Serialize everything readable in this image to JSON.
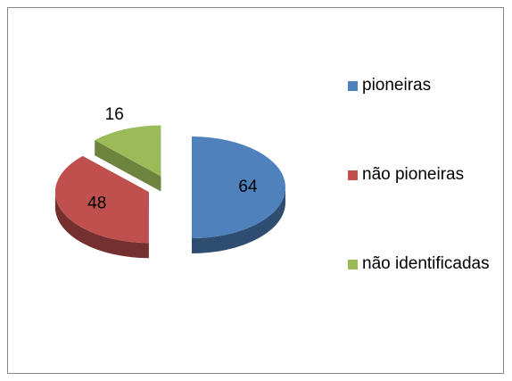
{
  "chart_data": {
    "type": "pie",
    "categories": [
      "pioneiras",
      "não pioneiras",
      "não identificadas"
    ],
    "values": [
      64,
      48,
      16
    ],
    "colors": [
      "#4f81bd",
      "#c0504d",
      "#9bbb59"
    ],
    "legend": "right"
  }
}
